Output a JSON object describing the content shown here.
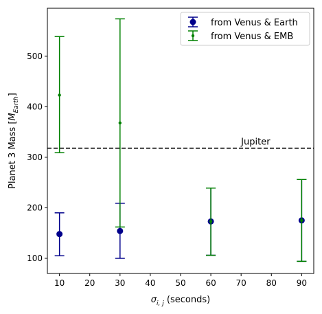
{
  "chart_data": {
    "type": "scatter",
    "title": "",
    "xlabel_symbol": "σ",
    "xlabel_sub": "i, j",
    "xlabel_suffix": " (seconds)",
    "ylabel_prefix": "Planet 3 Mass [",
    "ylabel_symbol": "M",
    "ylabel_sub": "Earth",
    "ylabel_suffix": "]",
    "xlim": [
      6,
      94
    ],
    "ylim": [
      70,
      595
    ],
    "xticks": [
      10,
      20,
      30,
      40,
      50,
      60,
      70,
      80,
      90
    ],
    "yticks": [
      100,
      200,
      300,
      400,
      500
    ],
    "grid": false,
    "legend_position": "top-right",
    "series": [
      {
        "name": "from Venus & Earth",
        "color": "#00008b",
        "marker": "large-dot",
        "points": [
          {
            "x": 10,
            "y": 148,
            "ylow": 105,
            "yhigh": 190
          },
          {
            "x": 30,
            "y": 154,
            "ylow": 100,
            "yhigh": 209
          },
          {
            "x": 60,
            "y": 173,
            "ylow": 106,
            "yhigh": 239
          },
          {
            "x": 90,
            "y": 175,
            "ylow": 94,
            "yhigh": 256
          }
        ]
      },
      {
        "name": "from Venus & EMB",
        "color": "#008000",
        "marker": "small-dot",
        "points": [
          {
            "x": 10,
            "y": 423,
            "ylow": 309,
            "yhigh": 539
          },
          {
            "x": 30,
            "y": 368,
            "ylow": 162,
            "yhigh": 574
          },
          {
            "x": 60,
            "y": 173,
            "ylow": 106,
            "yhigh": 239
          },
          {
            "x": 90,
            "y": 175,
            "ylow": 94,
            "yhigh": 256
          }
        ]
      }
    ],
    "reference_line": {
      "y": 318,
      "label": "Jupiter",
      "label_x": 70,
      "style": "dashed",
      "color": "#000000"
    }
  }
}
